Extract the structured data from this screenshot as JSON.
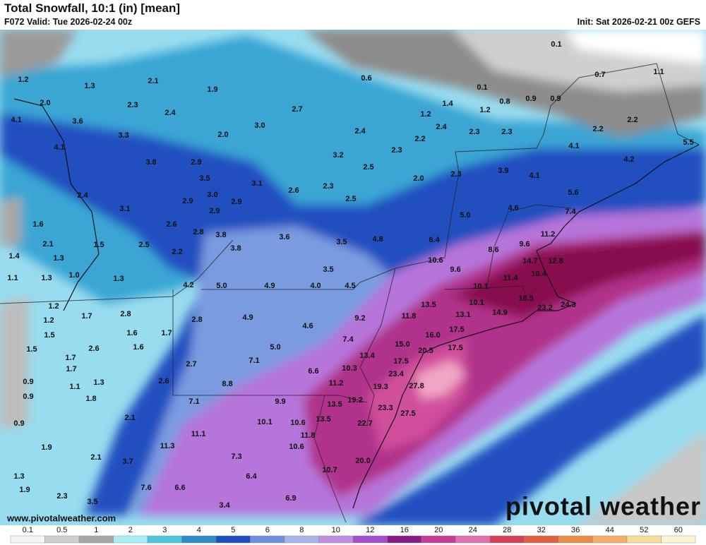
{
  "header": {
    "title": "Total Snowfall, 10:1 (in) [mean]",
    "valid": "F072 Valid: Tue 2026-02-24 00z",
    "init": "Init: Sat 2026-02-21 00z GEFS"
  },
  "map": {
    "snow_labels": [
      0.1,
      0.7,
      1.1,
      0.6,
      0.1,
      0.8,
      0.9,
      0.9,
      1.2,
      1.3,
      2.1,
      1.9,
      {
        "value": 2,
        "label": "2.0"
      },
      2.3,
      2.4,
      2.7,
      1.4,
      1.2,
      1.2,
      4.1,
      3.6,
      {
        "value": 3,
        "label": "3.0"
      },
      {
        "value": 2,
        "label": "2.0"
      },
      2.4,
      2.4,
      2.2,
      2.3,
      2.3,
      2.2,
      2.2,
      3.3,
      4.1,
      3.8,
      2.9,
      3.2,
      2.3,
      4.1,
      5.5,
      4.2,
      2.5,
      2.3,
      3.9,
      4.1,
      {
        "value": 2,
        "label": "2.0"
      },
      3.5,
      3.1,
      2.6,
      2.3,
      2.5,
      2.4,
      {
        "value": 3,
        "label": "3.0"
      },
      2.9,
      2.9,
      5.6,
      3.1,
      2.9,
      4.6,
      7.4,
      1.6,
      2.6,
      2.8,
      {
        "value": 5,
        "label": "5.0"
      },
      11.2,
      3.8,
      3.6,
      3.5,
      4.8,
      6.4,
      2.1,
      1.5,
      2.5,
      2.2,
      3.8,
      9.6,
      8.6,
      1.4,
      1.3,
      10.6,
      14.7,
      12.8,
      1.1,
      1.3,
      {
        "value": 1,
        "label": "1.0"
      },
      1.3,
      3.5,
      9.6,
      10.4,
      11.4,
      4.2,
      {
        "value": 5,
        "label": "5.0"
      },
      4.9,
      {
        "value": 4,
        "label": "4.0"
      },
      4.5,
      10.1,
      1.2,
      10.1,
      18.5,
      23.2,
      24.3,
      1.7,
      2.8,
      2.8,
      4.9,
      13.5,
      13.1,
      14.9,
      9.2,
      11.8,
      1.2,
      4.6,
      1.6,
      1.7,
      1.5,
      17.5,
      {
        "value": 16,
        "label": "16.0"
      },
      7.4,
      {
        "value": 5,
        "label": "5.0"
      },
      1.5,
      2.6,
      1.6,
      {
        "value": 15,
        "label": "15.0"
      },
      20.5,
      17.5,
      1.7,
      13.4,
      7.1,
      17.5,
      2.7,
      1.7,
      6.6,
      10.3,
      23.4,
      0.9,
      1.1,
      1.3,
      2.6,
      8.8,
      11.2,
      19.3,
      27.8,
      0.9,
      1.8,
      7.1,
      9.9,
      13.5,
      19.2,
      23.3,
      27.5,
      2.1,
      0.9,
      10.1,
      10.6,
      13.5,
      22.7,
      11.1,
      11.8,
      1.9,
      11.3,
      10.6,
      2.1,
      3.7,
      7.3,
      {
        "value": 20,
        "label": "20.0"
      },
      1.3,
      10.7,
      6.4,
      1.9,
      7.6,
      6.6,
      2.3,
      6.9,
      3.5,
      3.4
    ]
  },
  "colorbar": {
    "ticks": [
      0.1,
      0.5,
      1,
      2,
      3,
      4,
      5,
      6,
      8,
      10,
      12,
      16,
      20,
      24,
      28,
      32,
      36,
      44,
      52,
      60
    ],
    "colors": [
      "#f4f4f4",
      "#cfcfcf",
      "#a6a6a6",
      "#a8ecf6",
      "#4cc6e0",
      "#2a8cc8",
      "#1e4fc0",
      "#6f90e0",
      "#a7b4ec",
      "#c08ee4",
      "#a34fcc",
      "#8a1a88",
      "#c83a98",
      "#e070b0",
      "#d8405a",
      "#e06040",
      "#ec8a48",
      "#f4b068",
      "#f8dc98",
      "#fcf4d0"
    ]
  },
  "footer": {
    "url": "www.pivotalweather.com",
    "logo": "pivotal weather"
  }
}
